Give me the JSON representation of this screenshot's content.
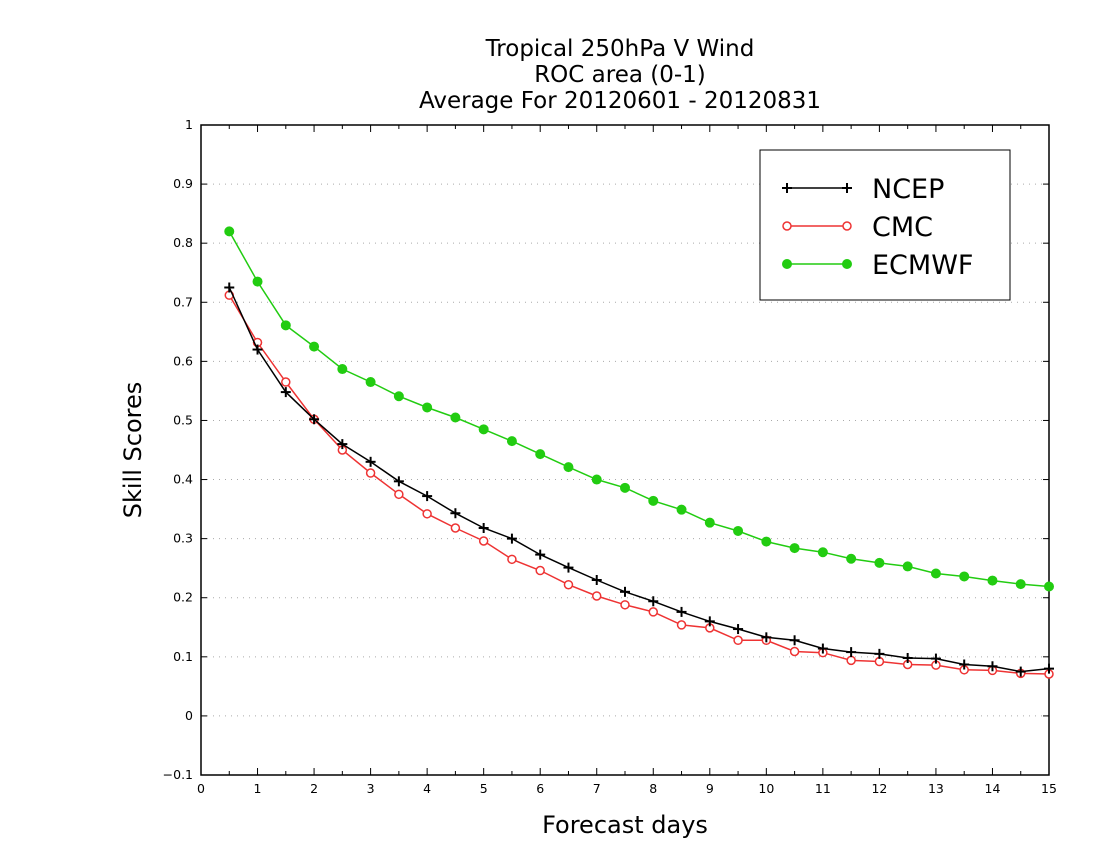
{
  "chart_data": {
    "type": "line",
    "title_lines": [
      "Tropical 250hPa V Wind",
      "ROC area (0-1)",
      "Average For 20120601 - 20120831"
    ],
    "xlabel": "Forecast days",
    "ylabel": "Skill Scores",
    "xlim": [
      0,
      15
    ],
    "ylim": [
      -0.1,
      1
    ],
    "x_ticks": [
      "0",
      "1",
      "2",
      "3",
      "4",
      "5",
      "6",
      "7",
      "8",
      "9",
      "10",
      "11",
      "12",
      "13",
      "14",
      "15"
    ],
    "y_ticks": [
      "−0.1",
      "0",
      "0.1",
      "0.2",
      "0.3",
      "0.4",
      "0.5",
      "0.6",
      "0.7",
      "0.8",
      "0.9",
      "1"
    ],
    "y_tick_values": [
      -0.1,
      0,
      0.1,
      0.2,
      0.3,
      0.4,
      0.5,
      0.6,
      0.7,
      0.8,
      0.9,
      1
    ],
    "grid": "horizontal dotted",
    "legend_position": "top-right",
    "x": [
      0.5,
      1,
      1.5,
      2,
      2.5,
      3,
      3.5,
      4,
      4.5,
      5,
      5.5,
      6,
      6.5,
      7,
      7.5,
      8,
      8.5,
      9,
      9.5,
      10,
      10.5,
      11,
      11.5,
      12,
      12.5,
      13,
      13.5,
      14,
      14.5,
      15
    ],
    "series": [
      {
        "name": "NCEP",
        "color": "#000000",
        "marker": "plus",
        "values": [
          0.725,
          0.62,
          0.548,
          0.502,
          0.46,
          0.43,
          0.397,
          0.372,
          0.343,
          0.318,
          0.3,
          0.273,
          0.251,
          0.23,
          0.21,
          0.194,
          0.176,
          0.16,
          0.147,
          0.133,
          0.128,
          0.114,
          0.108,
          0.105,
          0.098,
          0.097,
          0.087,
          0.084,
          0.075,
          0.08
        ]
      },
      {
        "name": "CMC",
        "color": "#ee3333",
        "marker": "open-circle",
        "values": [
          0.712,
          0.632,
          0.565,
          0.502,
          0.45,
          0.411,
          0.375,
          0.342,
          0.318,
          0.296,
          0.265,
          0.246,
          0.222,
          0.203,
          0.188,
          0.176,
          0.154,
          0.149,
          0.128,
          0.128,
          0.109,
          0.107,
          0.094,
          0.092,
          0.087,
          0.086,
          0.078,
          0.077,
          0.072,
          0.071
        ]
      },
      {
        "name": "ECMWF",
        "color": "#22cc11",
        "marker": "filled-circle",
        "values": [
          0.82,
          0.735,
          0.661,
          0.625,
          0.587,
          0.565,
          0.541,
          0.522,
          0.505,
          0.485,
          0.465,
          0.443,
          0.421,
          0.4,
          0.386,
          0.364,
          0.349,
          0.327,
          0.313,
          0.295,
          0.284,
          0.277,
          0.266,
          0.259,
          0.253,
          0.241,
          0.236,
          0.229,
          0.223,
          0.219
        ]
      }
    ]
  }
}
